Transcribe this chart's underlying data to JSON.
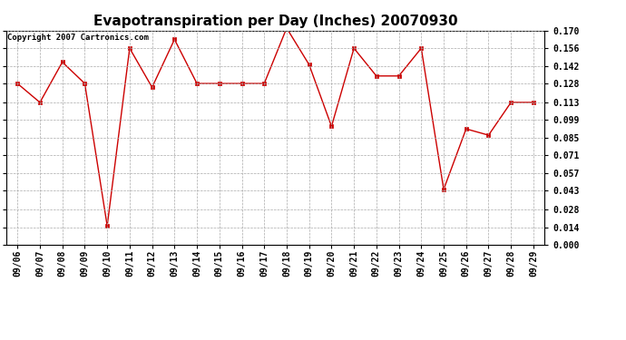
{
  "title": "Evapotranspiration per Day (Inches) 20070930",
  "copyright": "Copyright 2007 Cartronics.com",
  "dates": [
    "09/06",
    "09/07",
    "09/08",
    "09/09",
    "09/10",
    "09/11",
    "09/12",
    "09/13",
    "09/14",
    "09/15",
    "09/16",
    "09/17",
    "09/18",
    "09/19",
    "09/20",
    "09/21",
    "09/22",
    "09/23",
    "09/24",
    "09/25",
    "09/26",
    "09/27",
    "09/28",
    "09/29"
  ],
  "values": [
    0.128,
    0.113,
    0.145,
    0.128,
    0.015,
    0.156,
    0.125,
    0.163,
    0.128,
    0.128,
    0.128,
    0.128,
    0.172,
    0.143,
    0.094,
    0.156,
    0.134,
    0.134,
    0.156,
    0.044,
    0.092,
    0.087,
    0.113,
    0.113
  ],
  "line_color": "#CC0000",
  "marker": "s",
  "marker_size": 3,
  "ylim": [
    0.0,
    0.17
  ],
  "yticks": [
    0.0,
    0.014,
    0.028,
    0.043,
    0.057,
    0.071,
    0.085,
    0.099,
    0.113,
    0.128,
    0.142,
    0.156,
    0.17
  ],
  "bg_color": "#FFFFFF",
  "plot_bg_color": "#FFFFFF",
  "grid_color": "#AAAAAA",
  "title_fontsize": 11,
  "copyright_fontsize": 6.5,
  "tick_fontsize": 7,
  "tick_label_color": "#000000"
}
